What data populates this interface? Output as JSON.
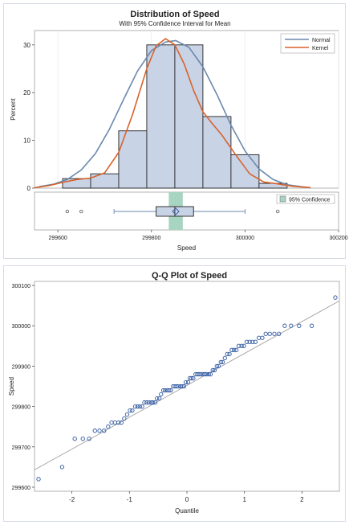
{
  "chart_data": [
    {
      "type": "bar",
      "title": "Distribution of Speed",
      "subtitle": "With 95% Confidence Interval for Mean",
      "xlabel": "Speed",
      "ylabel": "Percent",
      "xlim": [
        299550,
        300200
      ],
      "ylim": [
        0,
        33
      ],
      "x_ticks": [
        "299600",
        "299800",
        "300000",
        "300200"
      ],
      "x_tick_values": [
        299600,
        299800,
        300000,
        300200
      ],
      "y_ticks": [
        "0",
        "10",
        "20",
        "30"
      ],
      "y_tick_values": [
        0,
        10,
        20,
        30
      ],
      "grid": true,
      "legend_position": "top-right",
      "bins": [
        {
          "x0": 299610,
          "x1": 299670,
          "value": 2
        },
        {
          "x0": 299670,
          "x1": 299730,
          "value": 3
        },
        {
          "x0": 299730,
          "x1": 299790,
          "value": 12
        },
        {
          "x0": 299790,
          "x1": 299850,
          "value": 30
        },
        {
          "x0": 299850,
          "x1": 299910,
          "value": 30
        },
        {
          "x0": 299910,
          "x1": 299970,
          "value": 15
        },
        {
          "x0": 299970,
          "x1": 300030,
          "value": 7
        },
        {
          "x0": 300030,
          "x1": 300090,
          "value": 1
        }
      ],
      "series": [
        {
          "name": "Normal",
          "color": "#6a89ad",
          "x": [
            299560,
            299590,
            299620,
            299650,
            299680,
            299710,
            299740,
            299770,
            299800,
            299830,
            299852,
            299880,
            299910,
            299940,
            299970,
            300000,
            300030,
            300060,
            300090,
            300120,
            300140
          ],
          "y": [
            0.3,
            0.8,
            1.8,
            3.8,
            7.2,
            12.3,
            18.5,
            24.5,
            28.8,
            30.6,
            30.9,
            29.5,
            25.4,
            19.6,
            13.2,
            7.8,
            4.0,
            1.8,
            0.7,
            0.3,
            0.1
          ]
        },
        {
          "name": "Kernel",
          "color": "#d8622c",
          "x": [
            299550,
            299580,
            299610,
            299640,
            299670,
            299700,
            299730,
            299760,
            299790,
            299810,
            299830,
            299850,
            299870,
            299890,
            299910,
            299930,
            299950,
            299980,
            300010,
            300040,
            300070,
            300100,
            300140
          ],
          "y": [
            0.1,
            0.5,
            1.2,
            1.8,
            2.1,
            3.2,
            7.5,
            15.5,
            25.0,
            29.8,
            31.3,
            30.0,
            26.0,
            20.5,
            16.0,
            13.5,
            11.2,
            7.0,
            3.0,
            1.3,
            0.9,
            0.4,
            0.1
          ]
        }
      ],
      "boxplot": {
        "whisker_low": 299720,
        "q1": 299810,
        "median": 299850,
        "mean": 299852,
        "q3": 299890,
        "whisker_high": 300000,
        "outliers": [
          299620,
          299650,
          300070
        ],
        "ci_low": 299837,
        "ci_high": 299867,
        "ci_legend": "95% Confidence",
        "ci_color": "#a8d4c2"
      },
      "bar_fill": "#c9d3e6",
      "bar_stroke": "#222222"
    },
    {
      "type": "scatter",
      "title": "Q-Q Plot of Speed",
      "xlabel": "Quantile",
      "ylabel": "Speed",
      "xlim": [
        -2.65,
        2.65
      ],
      "ylim": [
        299590,
        300110
      ],
      "x_ticks": [
        "-2",
        "-1",
        "0",
        "1",
        "2"
      ],
      "x_tick_values": [
        -2,
        -1,
        0,
        1,
        2
      ],
      "y_ticks": [
        "299600",
        "299700",
        "299800",
        "299900",
        "300000",
        "300100"
      ],
      "y_tick_values": [
        299600,
        299700,
        299800,
        299900,
        300000,
        300100
      ],
      "reference_line": {
        "intercept": 299852.4,
        "slope": 79.0,
        "color": "#a0a0a0"
      },
      "point_color": "#2f58a0",
      "points": {
        "x": [
          -2.58,
          -2.17,
          -1.95,
          -1.81,
          -1.7,
          -1.6,
          -1.52,
          -1.44,
          -1.37,
          -1.31,
          -1.25,
          -1.19,
          -1.14,
          -1.09,
          -1.04,
          -0.99,
          -0.95,
          -0.9,
          -0.86,
          -0.82,
          -0.78,
          -0.74,
          -0.7,
          -0.66,
          -0.62,
          -0.59,
          -0.55,
          -0.52,
          -0.48,
          -0.45,
          -0.41,
          -0.38,
          -0.34,
          -0.31,
          -0.28,
          -0.24,
          -0.21,
          -0.18,
          -0.15,
          -0.11,
          -0.08,
          -0.05,
          -0.02,
          0.02,
          0.05,
          0.08,
          0.11,
          0.15,
          0.18,
          0.21,
          0.24,
          0.28,
          0.31,
          0.34,
          0.38,
          0.41,
          0.45,
          0.48,
          0.52,
          0.55,
          0.59,
          0.62,
          0.66,
          0.7,
          0.74,
          0.78,
          0.82,
          0.86,
          0.9,
          0.95,
          0.99,
          1.04,
          1.09,
          1.14,
          1.19,
          1.25,
          1.31,
          1.37,
          1.44,
          1.52,
          1.6,
          1.7,
          1.81,
          1.95,
          2.17,
          2.58
        ],
        "y": [
          299620,
          299650,
          299720,
          299720,
          299720,
          299740,
          299740,
          299740,
          299750,
          299760,
          299760,
          299760,
          299760,
          299770,
          299780,
          299790,
          299790,
          299800,
          299800,
          299800,
          299800,
          299810,
          299810,
          299810,
          299810,
          299810,
          299810,
          299820,
          299820,
          299830,
          299840,
          299840,
          299840,
          299840,
          299840,
          299850,
          299850,
          299850,
          299850,
          299850,
          299850,
          299850,
          299860,
          299860,
          299870,
          299870,
          299870,
          299880,
          299880,
          299880,
          299880,
          299880,
          299880,
          299880,
          299880,
          299880,
          299890,
          299890,
          299900,
          299900,
          299910,
          299910,
          299920,
          299930,
          299930,
          299940,
          299940,
          299940,
          299950,
          299950,
          299950,
          299960,
          299960,
          299960,
          299960,
          299970,
          299970,
          299980,
          299980,
          299980,
          299980,
          300000,
          300000,
          300000,
          300000,
          300070
        ]
      }
    }
  ]
}
